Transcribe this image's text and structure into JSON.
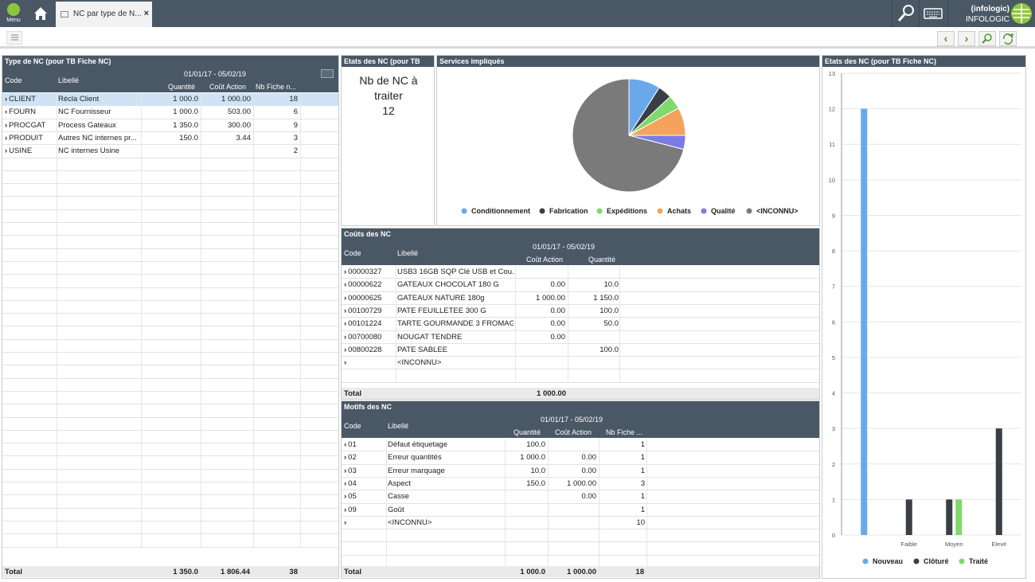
{
  "topbar": {
    "menu_label": "Menu",
    "tab_label": "NC par type de N...",
    "tab_close": "×",
    "user_name": "(infologic)",
    "user_org": "INFOLOGIC"
  },
  "toolbar": {
    "prev": "‹",
    "next": "›"
  },
  "colors": {
    "header": "#4a5866",
    "selected_row": "#cfe3f5",
    "conditionnement": "#6aa9e9",
    "fabrication": "#3a3f44",
    "expeditions": "#7fd96b",
    "achats": "#f5a35c",
    "qualite": "#7b7be6",
    "inconnu": "#7a7a7a"
  },
  "type_nc": {
    "title": "Type de NC (pour TB Fiche NC)",
    "col_code": "Code",
    "col_libelle": "Libellé",
    "period": "01/01/17 - 05/02/19",
    "col_quantite": "Quantité",
    "col_cout": "Coût Action",
    "col_nb": "Nb Fiche n...",
    "rows": [
      {
        "code": "CLIENT",
        "libelle": "Récla Client",
        "quantite": "1 000.0",
        "cout": "1 000.00",
        "nb": "18"
      },
      {
        "code": "FOURN",
        "libelle": "NC Fournisseur",
        "quantite": "1 000.0",
        "cout": "503.00",
        "nb": "6"
      },
      {
        "code": "PROCGAT",
        "libelle": "Process Gateaux",
        "quantite": "1 350.0",
        "cout": "300.00",
        "nb": "9"
      },
      {
        "code": "PRODUIT",
        "libelle": "Autres NC internes pr...",
        "quantite": "150.0",
        "cout": "3.44",
        "nb": "3"
      },
      {
        "code": "USINE",
        "libelle": "NC internes Usine",
        "quantite": "",
        "cout": "",
        "nb": "2"
      }
    ],
    "total_label": "Total",
    "total_quantite": "1 350.0",
    "total_cout": "1 806.44",
    "total_nb": "38"
  },
  "etats_small": {
    "title": "Etats des NC (pour TB",
    "line1": "Nb de NC à",
    "line2": "traiter",
    "value": "12"
  },
  "services": {
    "title": "Services impliqués"
  },
  "couts": {
    "title": "Coûts des NC",
    "col_code": "Code",
    "col_libelle": "Libellé",
    "period": "01/01/17 - 05/02/19",
    "col_cout": "Coût Action",
    "col_quantite": "Quantité",
    "rows": [
      {
        "code": "00000327",
        "libelle": "USB3 16GB SQP Clé USB et Cou...",
        "cout": "",
        "quantite": ""
      },
      {
        "code": "00000622",
        "libelle": "GATEAUX CHOCOLAT 180 G",
        "cout": "0.00",
        "quantite": "10.0"
      },
      {
        "code": "00000625",
        "libelle": "GATEAUX NATURE 180g",
        "cout": "1 000.00",
        "quantite": "1 150.0"
      },
      {
        "code": "00100729",
        "libelle": "PATE FEUILLETEE 300 G",
        "cout": "0.00",
        "quantite": "100.0"
      },
      {
        "code": "00101224",
        "libelle": "TARTE GOURMANDE 3 FROMAG...",
        "cout": "0.00",
        "quantite": "50.0"
      },
      {
        "code": "00700080",
        "libelle": "NOUGAT TENDRE",
        "cout": "0.00",
        "quantite": ""
      },
      {
        "code": "00800228",
        "libelle": "PATE SABLEE",
        "cout": "",
        "quantite": "100.0"
      },
      {
        "code": "",
        "libelle": "<INCONNU>",
        "cout": "",
        "quantite": ""
      }
    ],
    "total_label": "Total",
    "total_cout": "1 000.00"
  },
  "motifs": {
    "title": "Motifs des NC",
    "col_code": "Code",
    "col_libelle": "Libellé",
    "period": "01/01/17 - 05/02/19",
    "col_quantite": "Quantité",
    "col_cout": "Coût Action",
    "col_nb": "Nb Fiche ...",
    "rows": [
      {
        "code": "01",
        "libelle": "Défaut étiquetage",
        "quantite": "100.0",
        "cout": "",
        "nb": "1"
      },
      {
        "code": "02",
        "libelle": "Erreur quantités",
        "quantite": "1 000.0",
        "cout": "0.00",
        "nb": "1"
      },
      {
        "code": "03",
        "libelle": "Erreur marquage",
        "quantite": "10.0",
        "cout": "0.00",
        "nb": "1"
      },
      {
        "code": "04",
        "libelle": "Aspect",
        "quantite": "150.0",
        "cout": "1 000.00",
        "nb": "3"
      },
      {
        "code": "05",
        "libelle": "Casse",
        "quantite": "",
        "cout": "0.00",
        "nb": "1"
      },
      {
        "code": "09",
        "libelle": "Goût",
        "quantite": "",
        "cout": "",
        "nb": "1"
      },
      {
        "code": "",
        "libelle": "<INCONNU>",
        "quantite": "",
        "cout": "",
        "nb": "10"
      }
    ],
    "total_label": "Total",
    "total_quantite": "1 000.0",
    "total_cout": "1 000.00",
    "total_nb": "18"
  },
  "etats_chart": {
    "title": "Etats des NC (pour TB Fiche NC)"
  },
  "chart_data": [
    {
      "type": "pie",
      "title": "Services impliqués",
      "categories": [
        "Conditionnement",
        "Fabrication",
        "Expéditions",
        "Achats",
        "Qualité",
        "<INCONNU>"
      ],
      "values": [
        9,
        4,
        4,
        8,
        4,
        71
      ],
      "colors": [
        "#6aa9e9",
        "#3a3f44",
        "#7fd96b",
        "#f5a35c",
        "#7b7be6",
        "#7a7a7a"
      ],
      "legend": "bottom"
    },
    {
      "type": "bar",
      "title": "Etats des NC (pour TB Fiche NC)",
      "categories": [
        "",
        "Faible",
        "Moyen",
        "Elevé"
      ],
      "series": [
        {
          "name": "Nouveau",
          "values": [
            12,
            0,
            0,
            0
          ],
          "color": "#6aa9e9"
        },
        {
          "name": "Clôturé",
          "values": [
            0,
            1,
            1,
            3
          ],
          "color": "#3a3f44"
        },
        {
          "name": "Traité",
          "values": [
            0,
            0,
            1,
            0
          ],
          "color": "#7fd96b"
        }
      ],
      "ylim": [
        0,
        13
      ],
      "yticks": [
        "0",
        "1",
        "2",
        "3",
        "4",
        "5",
        "6",
        "7",
        "8",
        "9",
        "10",
        "11",
        "12",
        "13"
      ],
      "grid": true,
      "legend": "bottom"
    }
  ]
}
